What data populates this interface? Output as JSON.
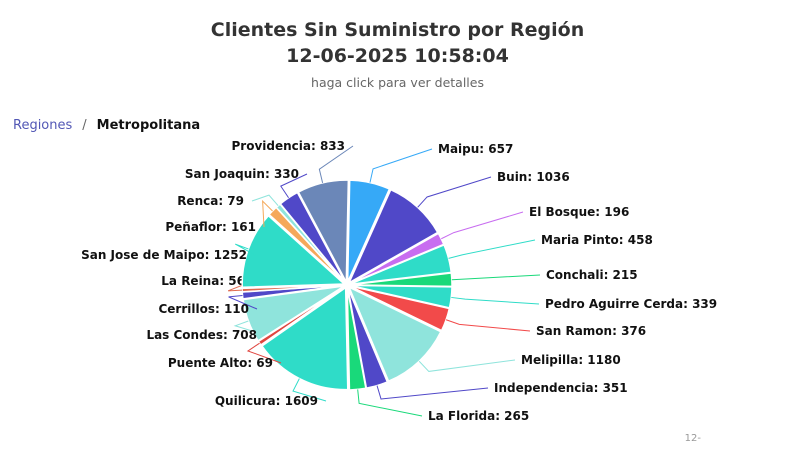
{
  "header": {
    "title_line1": "Clientes Sin Suministro por Región",
    "title_line2": "12-06-2025 10:58:04",
    "subtitle": "haga click para ver detalles"
  },
  "breadcrumb": {
    "root": "Regiones",
    "separator": "/",
    "current": "Metropolitana"
  },
  "corner_text": "12-",
  "chart_data": {
    "type": "pie",
    "title": "Clientes Sin Suministro por Región 12-06-2025 10:58:04",
    "slices": [
      {
        "label": "Maipu",
        "value": 657,
        "color": "#36a9f7"
      },
      {
        "label": "Buin",
        "value": 1036,
        "color": "#5048c8"
      },
      {
        "label": "El Bosque",
        "value": 196,
        "color": "#c86df0"
      },
      {
        "label": "Maria Pinto",
        "value": 458,
        "color": "#2fdcc8"
      },
      {
        "label": "Conchali",
        "value": 215,
        "color": "#19d97a"
      },
      {
        "label": "Pedro Aguirre Cerda",
        "value": 339,
        "color": "#2fdcc8"
      },
      {
        "label": "San Ramon",
        "value": 376,
        "color": "#f24a4a"
      },
      {
        "label": "Melipilla",
        "value": 1180,
        "color": "#8fe4dc"
      },
      {
        "label": "Independencia",
        "value": 351,
        "color": "#5048c8"
      },
      {
        "label": "La Florida",
        "value": 265,
        "color": "#19d97a"
      },
      {
        "label": "Quilicura",
        "value": 1609,
        "color": "#2fdcc8"
      },
      {
        "label": "Puente Alto",
        "value": 69,
        "color": "#e0453f"
      },
      {
        "label": "Las Condes",
        "value": 708,
        "color": "#8fe4dc"
      },
      {
        "label": "Cerrillos",
        "value": 110,
        "color": "#5048c8"
      },
      {
        "label": "La Reina",
        "value": 56,
        "color": "#e06a50"
      },
      {
        "label": "San Jose de Maipo",
        "value": 1252,
        "color": "#2fdcc8"
      },
      {
        "label": "Peñaflor",
        "value": 161,
        "color": "#f5a85a"
      },
      {
        "label": "Renca",
        "value": 79,
        "color": "#8fe4dc"
      },
      {
        "label": "San Joaquin",
        "value": 330,
        "color": "#5048c8"
      },
      {
        "label": "Providencia",
        "value": 833,
        "color": "#6b87b8"
      }
    ]
  }
}
